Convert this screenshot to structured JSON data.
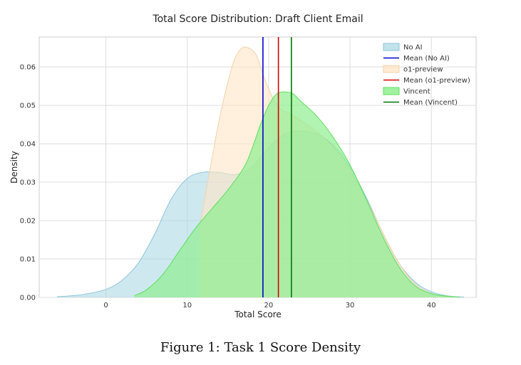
{
  "caption": "Figure 1: Task 1 Score Density",
  "chart_data": {
    "type": "area",
    "title": "Total Score Distribution: Draft Client Email",
    "xlabel": "Total Score",
    "ylabel": "Density",
    "xlim": [
      -8.2,
      45.5
    ],
    "ylim": [
      0,
      0.0678
    ],
    "xticks": [
      0,
      10,
      20,
      30,
      40
    ],
    "yticks": [
      0.0,
      0.01,
      0.02,
      0.03,
      0.04,
      0.05,
      0.06
    ],
    "ytick_labels": [
      "0.00",
      "0.01",
      "0.02",
      "0.03",
      "0.04",
      "0.05",
      "0.06"
    ],
    "grid": true,
    "legend_position": "top-right",
    "legend_order": [
      "No AI",
      "Mean (No AI)",
      "o1-preview",
      "Mean (o1-preview)",
      "Vincent",
      "Mean (Vincent)"
    ],
    "series": [
      {
        "name": "No AI",
        "fill": "#add8e6",
        "stroke": "#8fc6d8",
        "opacity": 0.6,
        "x": [
          -6,
          -3,
          0,
          2,
          4,
          6,
          8,
          10,
          12,
          14,
          16,
          18,
          20,
          22,
          24,
          26,
          28,
          30,
          32,
          34,
          36,
          38,
          40,
          42,
          44
        ],
        "y": [
          0.0002,
          0.0007,
          0.0021,
          0.0045,
          0.009,
          0.0165,
          0.0255,
          0.031,
          0.0326,
          0.0325,
          0.032,
          0.034,
          0.039,
          0.0425,
          0.0433,
          0.0425,
          0.0395,
          0.034,
          0.026,
          0.017,
          0.009,
          0.004,
          0.0015,
          0.0004,
          0.0001
        ]
      },
      {
        "name": "o1-preview",
        "fill": "#ffe4c4",
        "stroke": "#f2d3ab",
        "opacity": 0.6,
        "x": [
          11.5,
          12.5,
          14,
          15.5,
          16.5,
          17.5,
          18.5,
          19.5,
          20.5,
          21.5,
          22.5,
          24,
          26,
          28,
          30,
          32,
          34,
          36,
          38,
          40,
          42,
          43.5
        ],
        "y": [
          0.018,
          0.03,
          0.047,
          0.06,
          0.0645,
          0.065,
          0.063,
          0.057,
          0.052,
          0.049,
          0.048,
          0.046,
          0.043,
          0.039,
          0.033,
          0.0255,
          0.017,
          0.009,
          0.0035,
          0.001,
          0.0003,
          0.0001
        ]
      },
      {
        "name": "Vincent",
        "fill": "#90ee90",
        "stroke": "#5ce05c",
        "opacity": 0.7,
        "x": [
          3.5,
          5,
          7,
          9,
          11,
          13,
          15,
          17,
          18,
          19,
          20,
          21,
          22,
          23,
          24,
          26,
          28,
          30,
          32,
          34,
          36,
          38,
          40,
          42,
          43.5
        ],
        "y": [
          0.0005,
          0.002,
          0.006,
          0.012,
          0.018,
          0.023,
          0.028,
          0.034,
          0.039,
          0.045,
          0.05,
          0.053,
          0.0535,
          0.053,
          0.051,
          0.047,
          0.0415,
          0.0345,
          0.0255,
          0.016,
          0.008,
          0.003,
          0.001,
          0.0003,
          0.0001
        ]
      }
    ],
    "means": [
      {
        "name": "Mean (No AI)",
        "x": 19.3,
        "color": "#0000cc"
      },
      {
        "name": "Mean (o1-preview)",
        "x": 21.2,
        "color": "#dd0000"
      },
      {
        "name": "Mean (Vincent)",
        "x": 22.8,
        "color": "#007700"
      }
    ]
  }
}
